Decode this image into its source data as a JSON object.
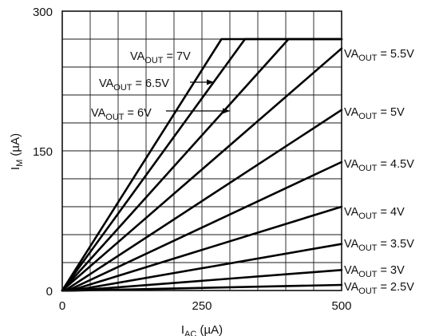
{
  "chart_data": {
    "type": "line",
    "x_axis": {
      "label_main": "I",
      "label_sub": "AC",
      "label_unit": " (µA)",
      "range": [
        0,
        500
      ],
      "ticks": [
        0,
        250,
        500
      ],
      "tick_labels": [
        "0",
        "250",
        "500"
      ]
    },
    "y_axis": {
      "label_main": "I",
      "label_sub": "M",
      "label_unit": " (µA)",
      "range": [
        0,
        300
      ],
      "ticks": [
        0,
        150,
        300
      ],
      "tick_labels": [
        "0",
        "150",
        "300"
      ]
    },
    "grid": true,
    "saturation": 270,
    "series": [
      {
        "name": "VAOUT = 2.5V",
        "label_pre": "VA",
        "label_sub": "OUT",
        "label_post": " = 2.5V",
        "points": [
          [
            0,
            0
          ],
          [
            30,
            0
          ],
          [
            500,
            6
          ]
        ]
      },
      {
        "name": "VAOUT = 3V",
        "label_pre": "VA",
        "label_sub": "OUT",
        "label_post": " = 3V",
        "points": [
          [
            0,
            0
          ],
          [
            25,
            0
          ],
          [
            500,
            22
          ]
        ]
      },
      {
        "name": "VAOUT = 3.5V",
        "label_pre": "VA",
        "label_sub": "OUT",
        "label_post": " = 3.5V",
        "points": [
          [
            0,
            0
          ],
          [
            20,
            0
          ],
          [
            500,
            50
          ]
        ]
      },
      {
        "name": "VAOUT = 4V",
        "label_pre": "VA",
        "label_sub": "OUT",
        "label_post": " = 4V",
        "points": [
          [
            0,
            0
          ],
          [
            15,
            0
          ],
          [
            500,
            90
          ]
        ]
      },
      {
        "name": "VAOUT = 4.5V",
        "label_pre": "VA",
        "label_sub": "OUT",
        "label_post": " = 4.5V",
        "points": [
          [
            0,
            0
          ],
          [
            10,
            0
          ],
          [
            500,
            138
          ]
        ]
      },
      {
        "name": "VAOUT = 5V",
        "label_pre": "VA",
        "label_sub": "OUT",
        "label_post": " = 5V",
        "points": [
          [
            0,
            0
          ],
          [
            5,
            0
          ],
          [
            500,
            194
          ]
        ]
      },
      {
        "name": "VAOUT = 5.5V",
        "label_pre": "VA",
        "label_sub": "OUT",
        "label_post": " = 5.5V",
        "points": [
          [
            0,
            0
          ],
          [
            500,
            260
          ]
        ]
      },
      {
        "name": "VAOUT = 6V",
        "label_pre": "VA",
        "label_sub": "OUT",
        "label_post": " = 6V",
        "points": [
          [
            0,
            0
          ],
          [
            405,
            270
          ],
          [
            500,
            270
          ]
        ]
      },
      {
        "name": "VAOUT = 6.5V",
        "label_pre": "VA",
        "label_sub": "OUT",
        "label_post": " = 6.5V",
        "points": [
          [
            0,
            0
          ],
          [
            327,
            270
          ],
          [
            500,
            270
          ]
        ]
      },
      {
        "name": "VAOUT = 7V",
        "label_pre": "VA",
        "label_sub": "OUT",
        "label_post": " = 7V",
        "points": [
          [
            0,
            0
          ],
          [
            285,
            270
          ],
          [
            500,
            270
          ]
        ]
      }
    ]
  }
}
